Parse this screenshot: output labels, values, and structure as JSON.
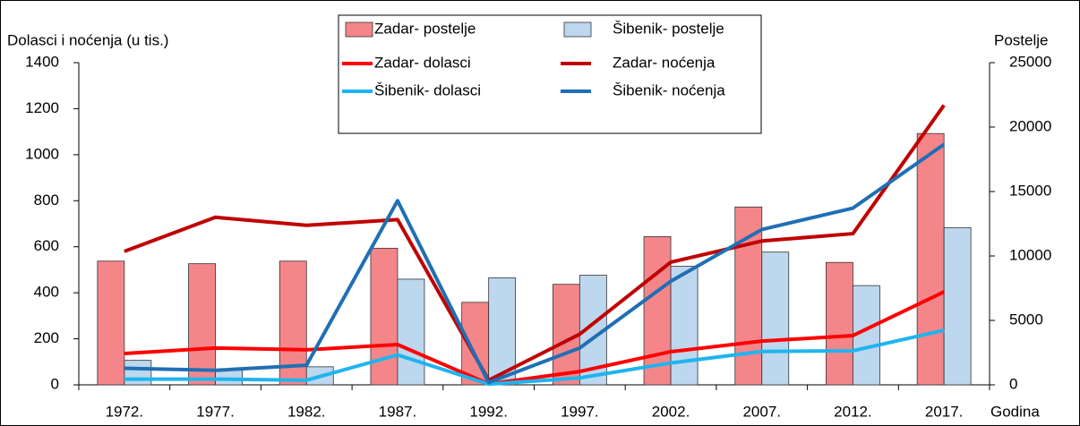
{
  "chart_data": {
    "type": "combo",
    "y_label": "Dolasci i noćenja (u tis.)",
    "y2_label": "Postelje",
    "x_label": "Godina",
    "categories": [
      "1972.",
      "1977.",
      "1982.",
      "1987.",
      "1992.",
      "1997.",
      "2002.",
      "2007.",
      "2012.",
      "2017."
    ],
    "ylim": [
      0,
      1400
    ],
    "yticks": [
      0,
      200,
      400,
      600,
      800,
      1000,
      1200,
      1400
    ],
    "y2lim": [
      0,
      25000
    ],
    "y2ticks": [
      0,
      5000,
      10000,
      15000,
      20000,
      25000
    ],
    "legend": "top",
    "series": [
      {
        "name": "Zadar- postelje",
        "type": "bar",
        "axis": "y2",
        "color": "#f4868a",
        "values": [
          9600,
          9400,
          9600,
          10600,
          6400,
          7800,
          11500,
          13800,
          9500,
          19500
        ]
      },
      {
        "name": "Šibenik- postelje",
        "type": "bar",
        "axis": "y2",
        "color": "#bdd7ee",
        "values": [
          1900,
          1200,
          1400,
          8200,
          8300,
          8500,
          9200,
          10300,
          7700,
          12200
        ]
      },
      {
        "name": "Zadar- dolasci",
        "type": "line",
        "color": "#ff0000",
        "values": [
          136,
          160,
          152,
          175,
          4,
          58,
          144,
          190,
          214,
          404
        ]
      },
      {
        "name": "Zadar- noćenja",
        "type": "line",
        "color": "#c00000",
        "values": [
          580,
          728,
          693,
          718,
          20,
          220,
          533,
          625,
          657,
          1215
        ]
      },
      {
        "name": "Šibenik- dolasci",
        "type": "line",
        "color": "#1fb4ee",
        "values": [
          25,
          25,
          20,
          130,
          3,
          30,
          95,
          145,
          148,
          237
        ]
      },
      {
        "name": "Šibenik- noćenja",
        "type": "line",
        "color": "#1f6fb4",
        "values": [
          72,
          63,
          85,
          800,
          10,
          160,
          450,
          675,
          768,
          1045
        ]
      }
    ]
  }
}
